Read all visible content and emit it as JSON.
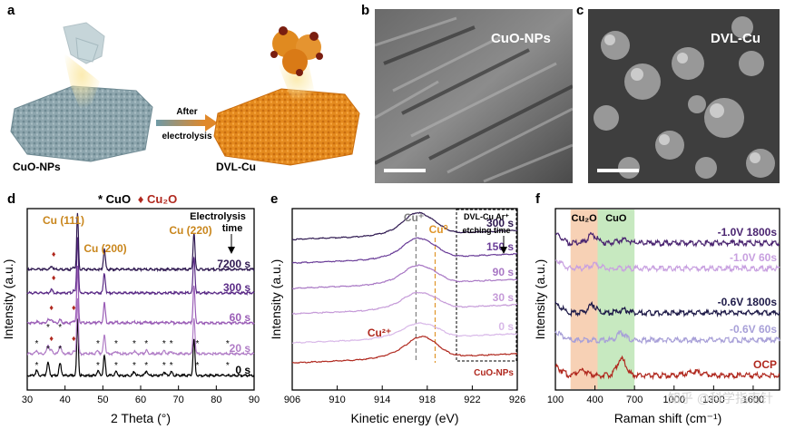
{
  "panels": {
    "a": {
      "label": "a",
      "left_caption": "CuO-NPs",
      "right_caption": "DVL-Cu",
      "arrow_top": "After",
      "arrow_bottom": "electrolysis"
    },
    "b": {
      "label": "b",
      "title": "CuO-NPs"
    },
    "c": {
      "label": "c",
      "title": "DVL-Cu"
    },
    "d": {
      "label": "d",
      "legend_cuo": "* CuO",
      "legend_cu2o": "♦ Cu₂O"
    },
    "e": {
      "label": "e"
    },
    "f": {
      "label": "f"
    }
  },
  "watermark": "知乎 @科学指南针",
  "chart_data": [
    {
      "panel": "d",
      "type": "line",
      "xlabel": "2 Theta (°)",
      "ylabel": "Intensity (a.u.)",
      "xlim": [
        30,
        90
      ],
      "xticks": [
        30,
        40,
        50,
        60,
        70,
        80,
        90
      ],
      "annotations": [
        "Cu (111)",
        "Cu (200)",
        "Cu (220)",
        "Electrolysis",
        "time"
      ],
      "peaks": {
        "cu": [
          43.3,
          50.4,
          74.1
        ],
        "cuo": [
          32.5,
          35.5,
          38.7,
          48.7,
          53.5,
          58.3,
          61.5,
          66.2,
          68.1,
          75.0,
          83.0
        ],
        "cu2o": [
          36.4,
          42.3
        ]
      },
      "series": [
        {
          "name": "0 s",
          "color": "#000000"
        },
        {
          "name": "20 s",
          "color": "#b07cc6"
        },
        {
          "name": "60 s",
          "color": "#9a5db6"
        },
        {
          "name": "300 s",
          "color": "#5a2a86"
        },
        {
          "name": "7200 s",
          "color": "#2e1850"
        }
      ]
    },
    {
      "panel": "e",
      "type": "line",
      "xlabel": "Kinetic energy (eV)",
      "ylabel": "Intensity (a.u.)",
      "xlim": [
        906,
        926
      ],
      "xticks": [
        906,
        910,
        914,
        918,
        922,
        926
      ],
      "annotations": [
        "Cu⁺",
        "Cu⁰",
        "Cu²⁺",
        "DVL-Cu Ar⁺",
        "etching time"
      ],
      "reference_lines": [
        917.0,
        918.7
      ],
      "series": [
        {
          "name": "CuO-NPs",
          "color": "#b0281e",
          "peak": 917.6
        },
        {
          "name": "0 s",
          "color": "#d8b8e8",
          "peak": 917.0
        },
        {
          "name": "30 s",
          "color": "#c59ad8",
          "peak": 917.0
        },
        {
          "name": "90 s",
          "color": "#a877c4",
          "peak": 917.0
        },
        {
          "name": "150 s",
          "color": "#6a3d98",
          "peak": 917.0
        },
        {
          "name": "300 s",
          "color": "#2e1850",
          "peak": 917.0
        }
      ]
    },
    {
      "panel": "f",
      "type": "line",
      "xlabel": "Raman shift (cm⁻¹)",
      "ylabel": "Intensity (a.u.)",
      "xlim": [
        100,
        1800
      ],
      "xticks": [
        100,
        400,
        700,
        1000,
        1300,
        1600
      ],
      "bands": [
        {
          "label": "Cu₂O",
          "range": [
            215,
            420
          ],
          "color": "#f6c9a8"
        },
        {
          "label": "CuO",
          "range": [
            420,
            700
          ],
          "color": "#bde5b5"
        }
      ],
      "series": [
        {
          "name": "OCP",
          "color": "#b0281e"
        },
        {
          "name": "-0.6V 60s",
          "color": "#a8a0d8"
        },
        {
          "name": "-0.6V 1800s",
          "color": "#1e1a48"
        },
        {
          "name": "-1.0V 60s",
          "color": "#c8a0e0"
        },
        {
          "name": "-1.0V 1800s",
          "color": "#4a2470"
        }
      ]
    }
  ]
}
